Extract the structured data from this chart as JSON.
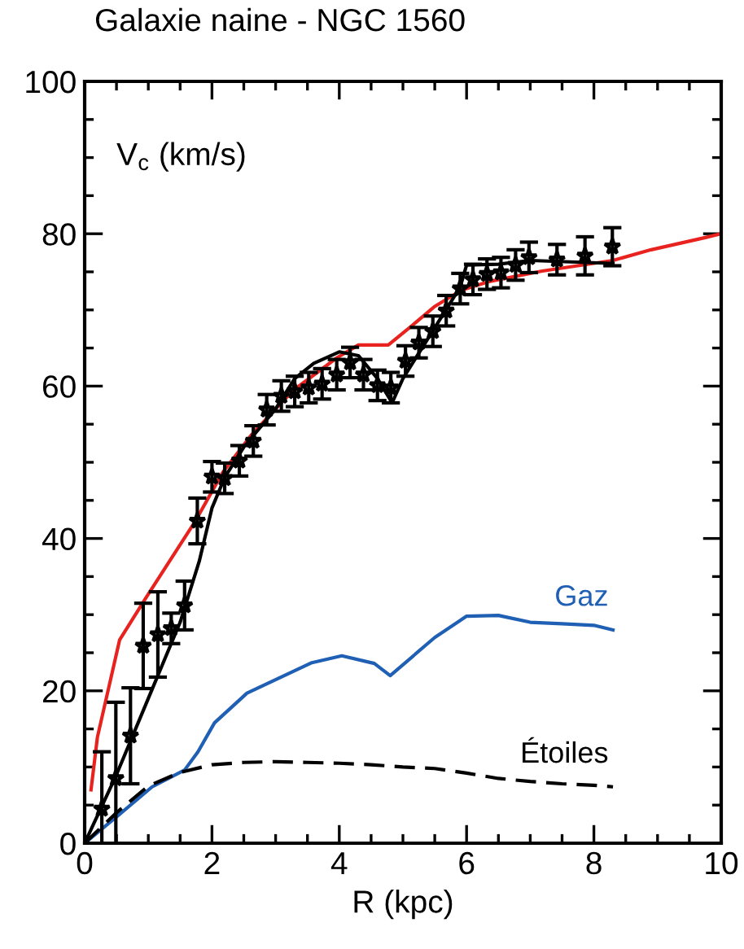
{
  "chart_data": {
    "type": "line",
    "title": "Galaxie naine - NGC 1560",
    "ylabel": "V$_{c}$ (km/s)",
    "xlabel": "R (kpc)",
    "xlim": [
      0,
      10
    ],
    "ylim": [
      0,
      100
    ],
    "xticks": [
      0,
      2,
      4,
      6,
      8,
      10
    ],
    "yticks": [
      0,
      20,
      40,
      60,
      80,
      100
    ],
    "grid": false,
    "legend": false,
    "series": [
      {
        "color": "#1f5fb4",
        "name": "Gaz",
        "x": [
          0,
          0.55,
          1.06,
          1.57,
          1.78,
          2.04,
          2.55,
          3.57,
          4.04,
          4.55,
          4.8,
          5.5,
          6.0,
          6.5,
          7.0,
          7.5,
          8.0,
          8.3
        ],
        "values": [
          0,
          3.8,
          7.4,
          9.6,
          12,
          15.8,
          19.7,
          23.7,
          24.6,
          23.6,
          22,
          27,
          29.8,
          29.9,
          29,
          28.8,
          28.6,
          28
        ]
      },
      {
        "color": "#000000",
        "name": "Étoiles",
        "line_style": "dashed",
        "x": [
          0,
          0.5,
          1.0,
          1.5,
          2.0,
          2.5,
          3.0,
          3.5,
          4.0,
          4.5,
          5.0,
          5.5,
          6.0,
          6.5,
          7.0,
          7.5,
          8.0,
          8.3
        ],
        "values": [
          0,
          4,
          7.5,
          9.3,
          10.3,
          10.6,
          10.7,
          10.6,
          10.5,
          10.3,
          10,
          9.8,
          9.2,
          8.5,
          8.1,
          7.8,
          7.6,
          7.4
        ]
      },
      {
        "color": "#e8231f",
        "x": [
          0.1,
          0.2,
          0.55,
          0.97,
          1.74,
          2.17,
          2.63,
          3.27,
          3.96,
          4.3,
          4.77,
          5.15,
          5.49,
          5.92,
          6.34,
          7.19,
          8.3,
          8.9,
          9.75,
          10
        ],
        "values": [
          7.0,
          13.9,
          26.7,
          32.3,
          42.3,
          48.7,
          53.7,
          59.4,
          63.7,
          65.4,
          65.4,
          68,
          70.4,
          72.6,
          73.7,
          75.1,
          76.5,
          77.9,
          79.5,
          80
        ]
      },
      {
        "color": "#000000",
        "x": [
          0,
          0.5,
          1.0,
          1.5,
          1.8,
          2.0,
          2.2,
          2.5,
          3.0,
          3.3,
          3.6,
          4.0,
          4.3,
          4.6,
          4.83,
          5.0,
          5.3,
          5.6,
          5.9,
          6.0,
          6.5,
          7.0,
          8.3
        ],
        "values": [
          0,
          9,
          19,
          29,
          37,
          44,
          48,
          52,
          57,
          61,
          63,
          64.5,
          64,
          61,
          57.8,
          61,
          65,
          69,
          73,
          75.9,
          76,
          76.5,
          76.1
        ]
      },
      {
        "type": "scatter",
        "color": "#000000",
        "marker": "star",
        "x": [
          0.27,
          0.49,
          0.72,
          0.92,
          1.15,
          1.36,
          1.57,
          1.77,
          2.0,
          2.2,
          2.43,
          2.65,
          2.86,
          3.09,
          3.3,
          3.52,
          3.73,
          3.96,
          4.17,
          4.38,
          4.6,
          4.81,
          5.04,
          5.25,
          5.47,
          5.68,
          5.9,
          6.1,
          6.32,
          6.54,
          6.77,
          6.98,
          7.42,
          7.86,
          8.29
        ],
        "values": [
          4.5,
          8.5,
          14.1,
          25.9,
          27.4,
          28.2,
          31.2,
          42.3,
          48.1,
          47.9,
          50.2,
          52.8,
          56.9,
          58.7,
          59.3,
          59.8,
          60.3,
          61.5,
          63.1,
          61.5,
          60.1,
          59.8,
          63.3,
          65.7,
          67.2,
          69.9,
          72.8,
          74.0,
          74.7,
          74.9,
          75.9,
          76.9,
          76.6,
          77.1,
          78.3
        ],
        "errors": [
          7.5,
          10,
          6.3,
          5.6,
          5.6,
          2,
          3.2,
          3,
          2,
          2,
          2,
          2,
          2,
          2,
          2,
          2,
          2,
          2,
          2,
          2,
          2,
          2,
          2,
          2,
          2,
          2,
          2,
          2,
          2,
          2,
          2,
          2,
          2,
          2.5,
          2.5
        ]
      }
    ]
  }
}
